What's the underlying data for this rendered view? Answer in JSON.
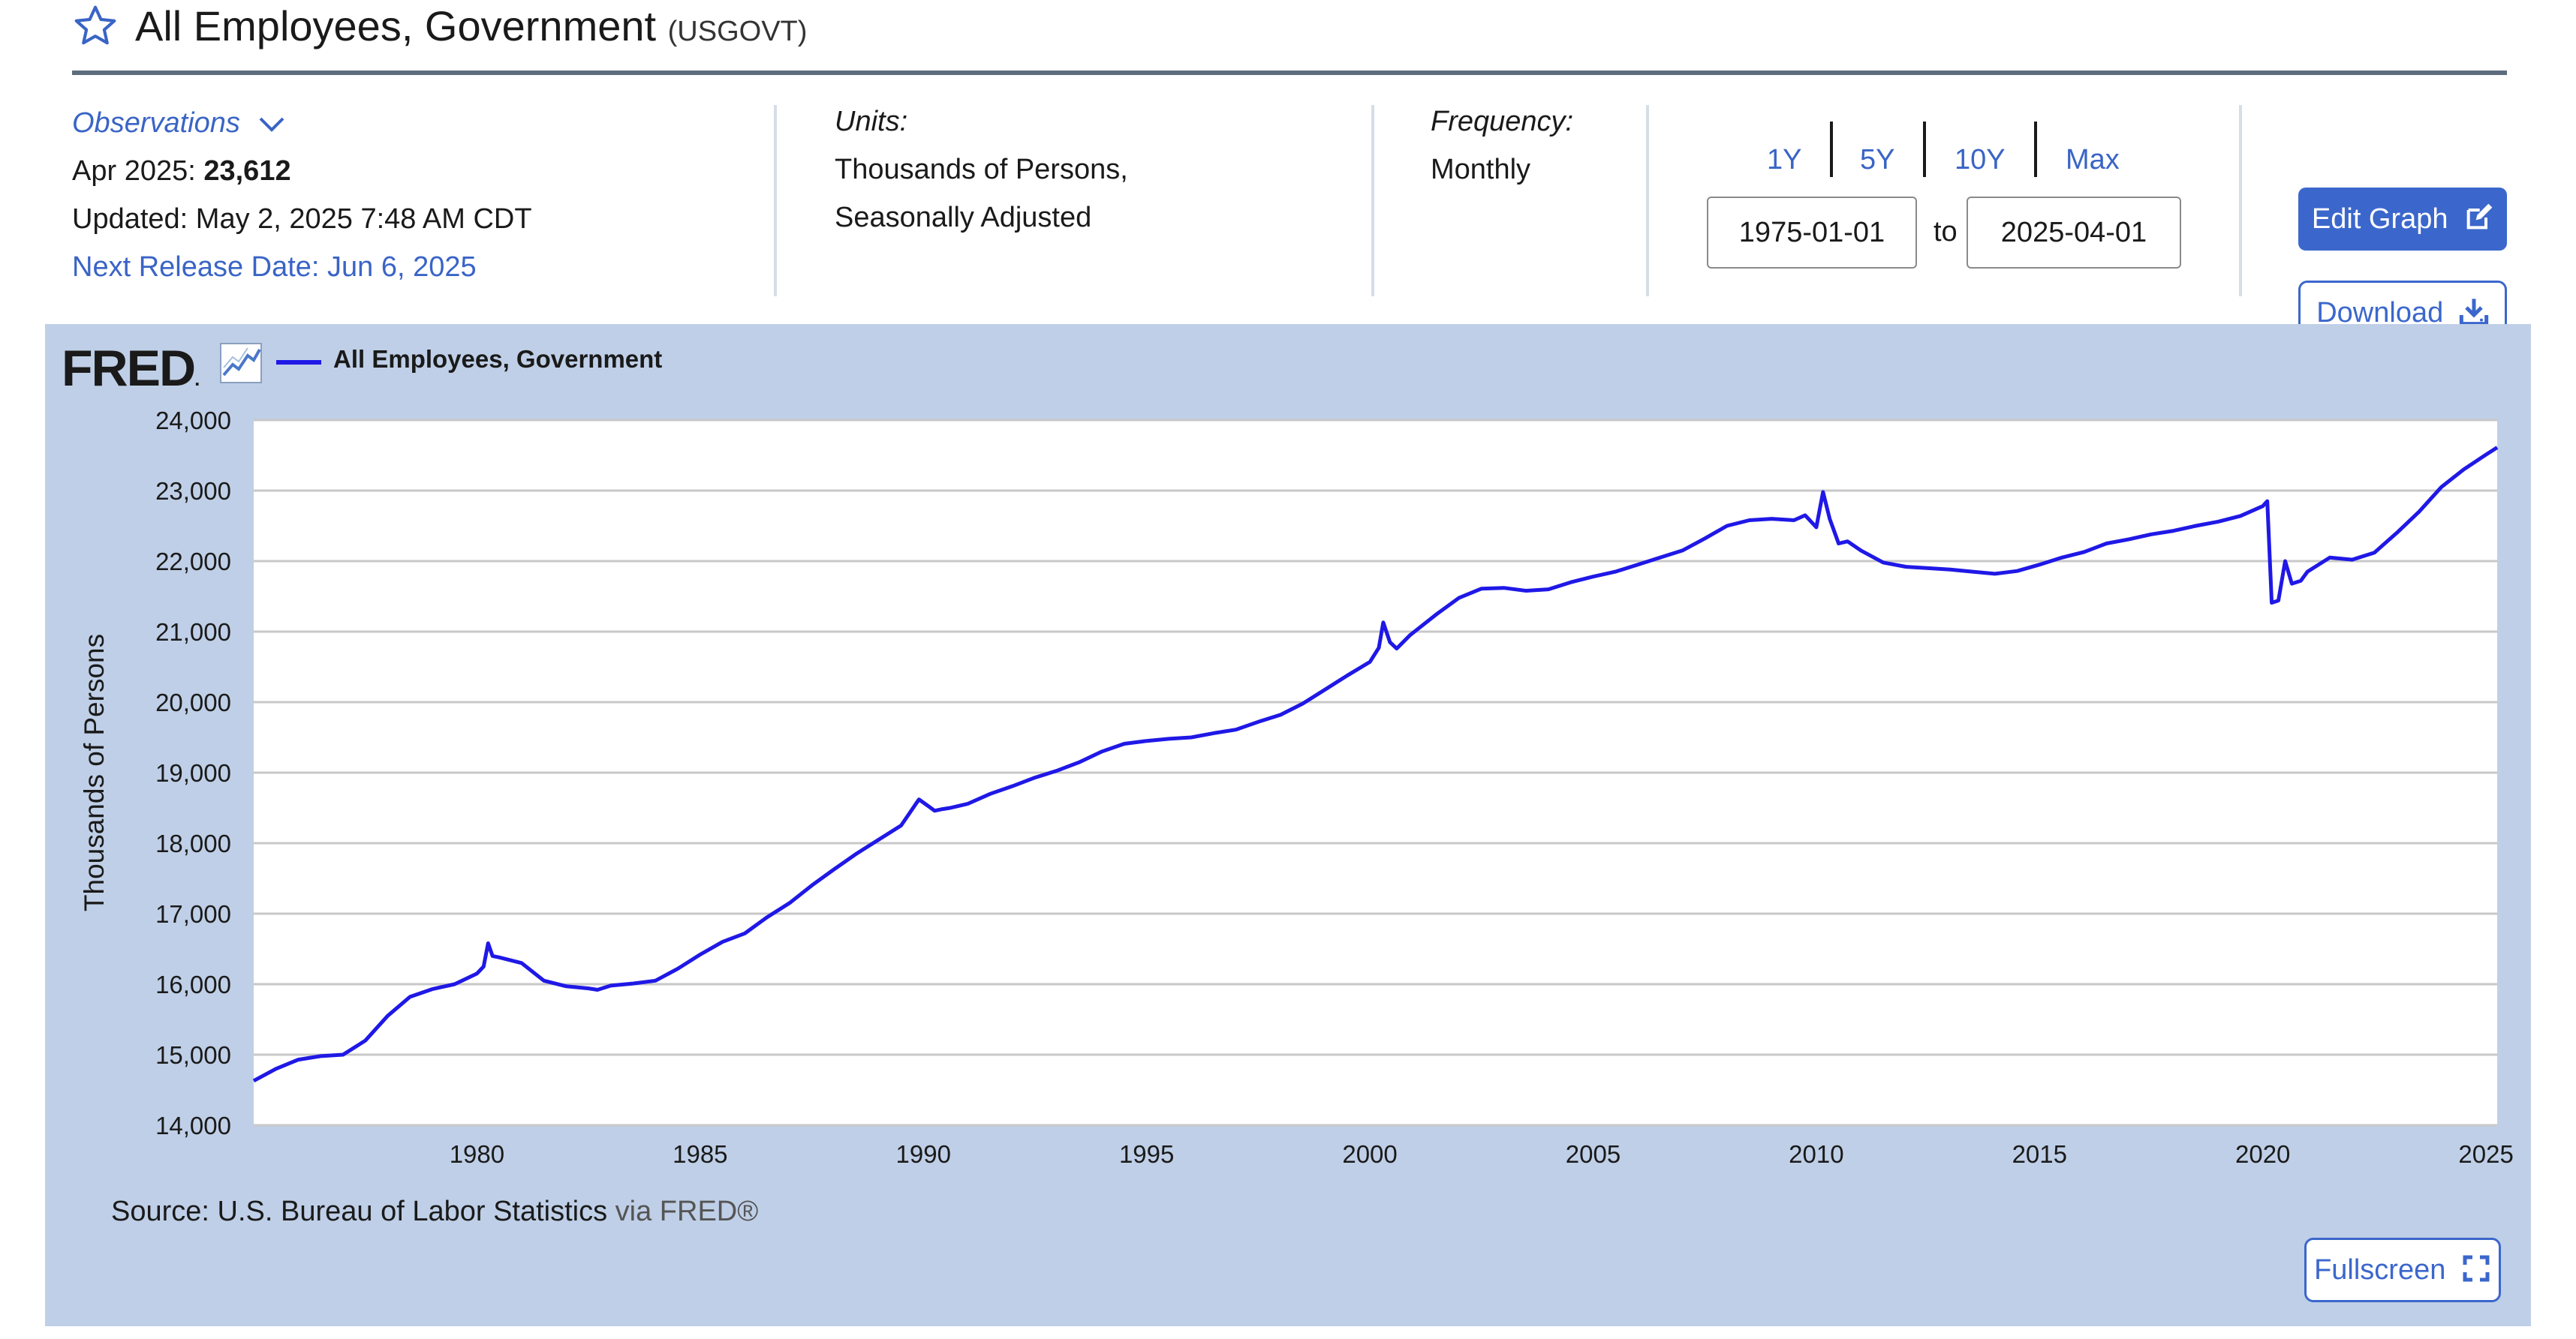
{
  "header": {
    "title": "All Employees, Government",
    "series_id": "(USGOVT)"
  },
  "observations": {
    "label": "Observations",
    "date_label": "Apr 2025:",
    "value": "23,612",
    "updated": "Updated: May 2, 2025 7:48 AM CDT",
    "next_release": "Next Release Date: Jun 6, 2025"
  },
  "units": {
    "label": "Units:",
    "line1": "Thousands of Persons,",
    "line2": "Seasonally Adjusted"
  },
  "frequency": {
    "label": "Frequency:",
    "value": "Monthly"
  },
  "range": {
    "buttons": [
      "1Y",
      "5Y",
      "10Y",
      "Max"
    ],
    "start": "1975-01-01",
    "end": "2025-04-01",
    "to_label": "to"
  },
  "actions": {
    "edit_label": "Edit Graph",
    "download_label": "Download",
    "fullscreen_label": "Fullscreen"
  },
  "graph": {
    "logo": "FRED",
    "source_label": "Source: U.S. Bureau of Labor Statistics",
    "via_label": "via FRED®"
  },
  "colors": {
    "line": "#1f18e6",
    "panel_bg": "#bfcfe7",
    "accent": "#3b67cc"
  },
  "chart_data": {
    "type": "line",
    "title": "",
    "xlabel": "",
    "ylabel": "Thousands of Persons",
    "legend": "All Employees, Government",
    "legend_position": "top-left",
    "grid": true,
    "xlim": [
      1975.0,
      2025.25
    ],
    "ylim": [
      14000,
      24000
    ],
    "xticks": [
      1980,
      1985,
      1990,
      1995,
      2000,
      2005,
      2010,
      2015,
      2020,
      2025
    ],
    "xtick_labels": [
      "1980",
      "1985",
      "1990",
      "1995",
      "2000",
      "2005",
      "2010",
      "2015",
      "2020",
      "2025"
    ],
    "yticks": [
      14000,
      15000,
      16000,
      17000,
      18000,
      19000,
      20000,
      21000,
      22000,
      23000,
      24000
    ],
    "ytick_labels": [
      "14,000",
      "15,000",
      "16,000",
      "17,000",
      "18,000",
      "19,000",
      "20,000",
      "21,000",
      "22,000",
      "23,000",
      "24,000"
    ],
    "series": [
      {
        "name": "All Employees, Government",
        "x": [
          1975.0,
          1975.5,
          1976.0,
          1976.5,
          1977.0,
          1977.5,
          1978.0,
          1978.5,
          1979.0,
          1979.5,
          1980.0,
          1980.15,
          1980.25,
          1980.35,
          1980.5,
          1981.0,
          1981.5,
          1982.0,
          1982.5,
          1982.7,
          1983.0,
          1983.5,
          1984.0,
          1984.5,
          1985.0,
          1985.5,
          1986.0,
          1986.5,
          1987.0,
          1987.5,
          1988.0,
          1988.5,
          1989.0,
          1989.5,
          1989.9,
          1990.1,
          1990.25,
          1990.4,
          1990.6,
          1991.0,
          1991.5,
          1992.0,
          1992.5,
          1993.0,
          1993.5,
          1994.0,
          1994.5,
          1995.0,
          1995.5,
          1996.0,
          1996.5,
          1997.0,
          1997.5,
          1998.0,
          1998.5,
          1999.0,
          1999.5,
          2000.0,
          2000.2,
          2000.3,
          2000.45,
          2000.6,
          2000.9,
          2001.5,
          2002.0,
          2002.5,
          2003.0,
          2003.5,
          2004.0,
          2004.5,
          2005.0,
          2005.5,
          2006.0,
          2006.5,
          2007.0,
          2007.5,
          2008.0,
          2008.5,
          2009.0,
          2009.5,
          2009.75,
          2010.0,
          2010.15,
          2010.3,
          2010.5,
          2010.7,
          2011.0,
          2011.5,
          2012.0,
          2012.5,
          2013.0,
          2013.5,
          2014.0,
          2014.5,
          2015.0,
          2015.5,
          2016.0,
          2016.5,
          2017.0,
          2017.5,
          2018.0,
          2018.5,
          2019.0,
          2019.5,
          2020.0,
          2020.1,
          2020.2,
          2020.35,
          2020.5,
          2020.65,
          2020.85,
          2021.0,
          2021.5,
          2022.0,
          2022.5,
          2023.0,
          2023.5,
          2024.0,
          2024.5,
          2025.0,
          2025.25
        ],
        "values": [
          14630,
          14800,
          14930,
          14980,
          15000,
          15200,
          15550,
          15820,
          15930,
          16000,
          16150,
          16250,
          16580,
          16400,
          16380,
          16300,
          16050,
          15970,
          15940,
          15920,
          15980,
          16010,
          16050,
          16220,
          16420,
          16600,
          16720,
          16950,
          17150,
          17400,
          17630,
          17850,
          18050,
          18250,
          18620,
          18530,
          18460,
          18480,
          18500,
          18560,
          18700,
          18810,
          18930,
          19030,
          19150,
          19300,
          19410,
          19450,
          19480,
          19500,
          19560,
          19610,
          19720,
          19820,
          19980,
          20180,
          20380,
          20570,
          20770,
          21130,
          20850,
          20760,
          20950,
          21250,
          21480,
          21610,
          21620,
          21580,
          21600,
          21700,
          21780,
          21850,
          21950,
          22050,
          22150,
          22320,
          22500,
          22580,
          22600,
          22580,
          22650,
          22480,
          22980,
          22600,
          22250,
          22280,
          22150,
          21980,
          21920,
          21900,
          21880,
          21850,
          21820,
          21860,
          21950,
          22050,
          22130,
          22250,
          22310,
          22380,
          22430,
          22500,
          22560,
          22640,
          22780,
          22850,
          21410,
          21440,
          22000,
          21680,
          21720,
          21850,
          22050,
          22020,
          22120,
          22400,
          22700,
          23050,
          23300,
          23510,
          23612
        ]
      }
    ]
  }
}
